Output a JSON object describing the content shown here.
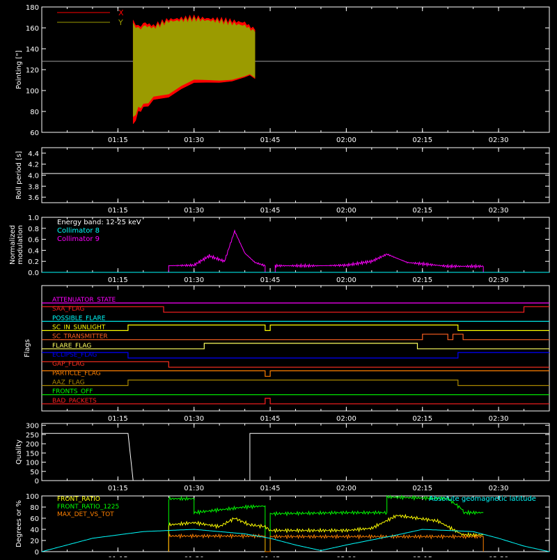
{
  "background": "#000000",
  "foreground": "#ffffff",
  "time_ticks": [
    "01:15",
    "01:30",
    "01:45",
    "02:00",
    "02:15",
    "02:30"
  ],
  "chart_data": [
    {
      "type": "line",
      "panel": "pointing",
      "ylabel": "Pointing [\"]",
      "ylim": [
        60,
        180
      ],
      "yticks": [
        "60",
        "80",
        "100",
        "120",
        "140",
        "160",
        "180"
      ],
      "legend": [
        {
          "name": "X",
          "color": "#ff0000"
        },
        {
          "name": "Y",
          "color": "#9b9b00"
        }
      ],
      "reference_line": {
        "y": 128,
        "color": "#a0a0a0"
      },
      "series": [
        {
          "name": "X",
          "color": "#ff0000",
          "x": [
            "01:18",
            "01:19",
            "01:20",
            "01:22",
            "01:25",
            "01:30",
            "01:35",
            "01:40",
            "01:42"
          ],
          "y_min": [
            68,
            78,
            85,
            90,
            95,
            105,
            110,
            112,
            113
          ],
          "y_max": [
            168,
            160,
            165,
            162,
            168,
            170,
            168,
            165,
            158
          ]
        },
        {
          "name": "Y",
          "color": "#9b9b00",
          "x": [
            "01:18",
            "01:19",
            "01:20",
            "01:22",
            "01:25",
            "01:30",
            "01:35",
            "01:40",
            "01:42"
          ],
          "y_min": [
            75,
            82,
            88,
            93,
            98,
            108,
            112,
            113,
            114
          ],
          "y_max": [
            165,
            158,
            162,
            160,
            166,
            168,
            166,
            162,
            156
          ]
        }
      ]
    },
    {
      "type": "line",
      "panel": "roll_period",
      "ylabel": "Roll period [s]",
      "ylim": [
        3.5,
        4.5
      ],
      "yticks": [
        "3.6",
        "3.8",
        "4.0",
        "4.2",
        "4.4"
      ],
      "series": [
        {
          "name": "",
          "color": "#ffffff",
          "x": [
            "01:00",
            "02:40"
          ],
          "y": [
            4.03,
            4.03
          ]
        }
      ]
    },
    {
      "type": "line",
      "panel": "modulation",
      "ylabel": "Normalized modulation",
      "ylim": [
        0,
        1
      ],
      "yticks": [
        "0.0",
        "0.2",
        "0.4",
        "0.6",
        "0.8",
        "1.0"
      ],
      "legend": [
        {
          "name": "Energy band: 12-25 keV",
          "color": "#ffffff"
        },
        {
          "name": "Collimator 8",
          "color": "#00ffff"
        },
        {
          "name": "Collimator 9",
          "color": "#ff00ff"
        }
      ],
      "series": [
        {
          "name": "Collimator 9",
          "color": "#ff00ff",
          "x": [
            "01:25",
            "01:25",
            "01:30",
            "01:33",
            "01:36",
            "01:38",
            "01:40",
            "01:42",
            "01:44",
            "01:44",
            "01:46",
            "01:46",
            "01:55",
            "02:00",
            "02:05",
            "02:08",
            "02:12",
            "02:20",
            "02:27",
            "02:27"
          ],
          "y": [
            0.0,
            0.12,
            0.13,
            0.3,
            0.2,
            0.75,
            0.35,
            0.18,
            0.12,
            0.0,
            0.0,
            0.12,
            0.12,
            0.13,
            0.2,
            0.33,
            0.18,
            0.11,
            0.11,
            0.0
          ]
        },
        {
          "name": "Collimator 8",
          "color": "#00ffff",
          "x": [
            "01:00",
            "02:40"
          ],
          "y": [
            0.0,
            0.0
          ]
        }
      ]
    },
    {
      "type": "line",
      "panel": "flags",
      "ylabel": "Flags",
      "flags": [
        {
          "name": "ATTENUATOR_STATE",
          "color": "#ff00ff",
          "x": [
            "01:00",
            "02:40"
          ],
          "y": [
            0,
            0
          ]
        },
        {
          "name": "SAA_FLAG",
          "color": "#ff2020",
          "x": [
            "01:00",
            "01:24",
            "01:24",
            "02:35",
            "02:35",
            "02:40"
          ],
          "y": [
            1,
            1,
            0,
            0,
            1,
            1
          ]
        },
        {
          "name": "POSSIBLE_FLARE",
          "color": "#00ffff",
          "x": [
            "01:00",
            "02:40"
          ],
          "y": [
            0,
            0
          ]
        },
        {
          "name": "SC_IN_SUNLIGHT",
          "color": "#ffff00",
          "x": [
            "01:00",
            "01:17",
            "01:17",
            "01:44",
            "01:44",
            "01:45",
            "01:45",
            "02:22",
            "02:22",
            "02:40"
          ],
          "y": [
            0,
            0,
            1,
            1,
            0,
            0,
            1,
            1,
            0,
            0
          ]
        },
        {
          "name": "SC_TRANSMITTER",
          "color": "#ff6020",
          "x": [
            "01:00",
            "02:15",
            "02:15",
            "02:20",
            "02:20",
            "02:21",
            "02:21",
            "02:23",
            "02:23",
            "02:40"
          ],
          "y": [
            0,
            0,
            1,
            1,
            0,
            0,
            1,
            1,
            0,
            0
          ]
        },
        {
          "name": "FLARE_FLAG",
          "color": "#ffff60",
          "x": [
            "01:00",
            "01:32",
            "01:32",
            "02:05",
            "02:05",
            "02:14",
            "02:14",
            "02:40"
          ],
          "y": [
            0,
            0,
            1,
            1,
            1,
            1,
            0,
            0
          ]
        },
        {
          "name": "ECLIPSE_FLAG",
          "color": "#0000ff",
          "x": [
            "01:00",
            "01:17",
            "01:17",
            "02:22",
            "02:22",
            "02:40"
          ],
          "y": [
            1,
            1,
            0,
            0,
            1,
            1
          ]
        },
        {
          "name": "GAP_FLAG",
          "color": "#ff3020",
          "x": [
            "01:00",
            "01:25",
            "01:25",
            "02:40"
          ],
          "y": [
            1,
            1,
            0,
            0
          ]
        },
        {
          "name": "PARTICLE_FLAG",
          "color": "#ff8000",
          "x": [
            "01:00",
            "01:44",
            "01:44",
            "01:45",
            "01:45",
            "02:40"
          ],
          "y": [
            1,
            1,
            0,
            0,
            1,
            1
          ]
        },
        {
          "name": "AAZ_FLAG",
          "color": "#aa8800",
          "x": [
            "01:00",
            "01:17",
            "01:17",
            "02:22",
            "02:22",
            "02:40"
          ],
          "y": [
            0,
            0,
            1,
            1,
            0,
            0
          ]
        },
        {
          "name": "FRONTS_OFF",
          "color": "#00ff00",
          "x": [
            "01:00",
            "02:40"
          ],
          "y": [
            0,
            0
          ]
        },
        {
          "name": "BAD_PACKETS",
          "color": "#ff2020",
          "x": [
            "01:00",
            "01:44",
            "01:44",
            "01:45",
            "01:45",
            "02:40"
          ],
          "y": [
            0,
            0,
            1,
            1,
            0,
            0
          ]
        }
      ]
    },
    {
      "type": "line",
      "panel": "quality",
      "ylabel": "Quality",
      "ylim": [
        0,
        310
      ],
      "yticks": [
        "0",
        "50",
        "100",
        "150",
        "200",
        "250",
        "300"
      ],
      "series": [
        {
          "name": "",
          "color": "#ffffff",
          "x": [
            "01:00",
            "01:17",
            "01:18",
            "01:41",
            "01:41",
            "02:40"
          ],
          "y": [
            256,
            256,
            0,
            0,
            256,
            256
          ]
        }
      ]
    },
    {
      "type": "line",
      "panel": "ratios",
      "ylabel": "Degrees or %",
      "ylim": [
        0,
        100
      ],
      "yticks": [
        "0",
        "20",
        "40",
        "60",
        "80",
        "100"
      ],
      "legend": [
        {
          "name": "FRONT_RATIO",
          "color": "#ffff00"
        },
        {
          "name": "FRONT_RATIO_1225",
          "color": "#00ff00"
        },
        {
          "name": "MAX_DET_VS_TOT",
          "color": "#ff8000"
        }
      ],
      "annotation": {
        "text": "Absolute geomagnetic latitude",
        "color": "#00ffff"
      },
      "series": [
        {
          "name": "FRONT_RATIO_1225",
          "color": "#00ff00",
          "x": [
            "01:25",
            "01:25",
            "01:30",
            "01:30",
            "01:35",
            "01:40",
            "01:44",
            "01:44",
            "01:45",
            "01:45",
            "02:00",
            "02:08",
            "02:08",
            "02:20",
            "02:23",
            "02:23",
            "02:27"
          ],
          "y": [
            0,
            95,
            95,
            70,
            75,
            80,
            82,
            0,
            0,
            68,
            70,
            70,
            98,
            95,
            75,
            70,
            70
          ]
        },
        {
          "name": "FRONT_RATIO",
          "color": "#ffff00",
          "x": [
            "01:25",
            "01:25",
            "01:30",
            "01:35",
            "01:38",
            "01:41",
            "01:44",
            "01:45",
            "02:00",
            "02:05",
            "02:10",
            "02:18",
            "02:23",
            "02:27"
          ],
          "y": [
            0,
            48,
            52,
            45,
            60,
            48,
            45,
            38,
            38,
            42,
            65,
            55,
            30,
            30
          ]
        },
        {
          "name": "MAX_DET_VS_TOT",
          "color": "#ff8000",
          "x": [
            "01:25",
            "01:25",
            "01:44",
            "01:44",
            "01:45",
            "01:45",
            "02:27",
            "02:27"
          ],
          "y": [
            0,
            28,
            28,
            0,
            0,
            27,
            27,
            0
          ]
        },
        {
          "name": "Absolute geomagnetic latitude",
          "color": "#00ffff",
          "x": [
            "01:00",
            "01:10",
            "01:20",
            "01:30",
            "01:40",
            "01:45",
            "01:50",
            "01:55",
            "02:00",
            "02:10",
            "02:15",
            "02:25",
            "02:30",
            "02:35",
            "02:40"
          ],
          "y": [
            0,
            24,
            36,
            40,
            32,
            24,
            12,
            2,
            12,
            30,
            40,
            36,
            24,
            10,
            0
          ]
        }
      ]
    }
  ]
}
